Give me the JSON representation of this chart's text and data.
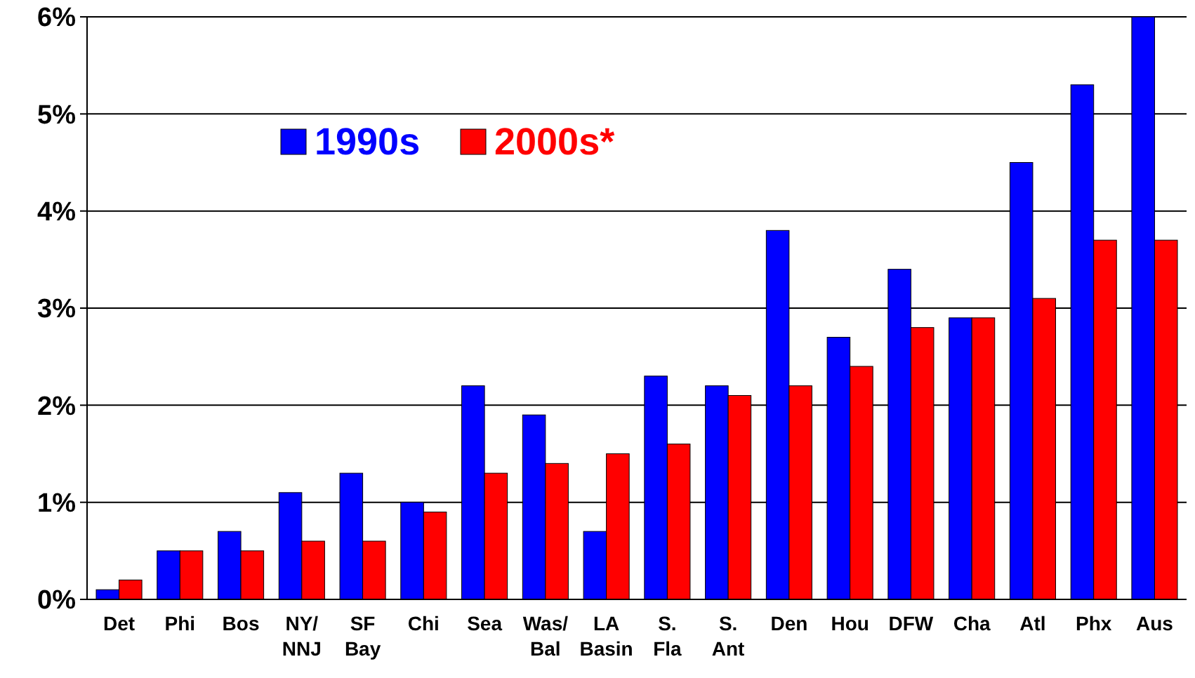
{
  "chart_data": {
    "type": "bar",
    "categories": [
      "Det",
      "Phi",
      "Bos",
      "NY/\nNNJ",
      "SF\nBay",
      "Chi",
      "Sea",
      "Was/\nBal",
      "LA\nBasin",
      "S.\nFla",
      "S.\nAnt",
      "Den",
      "Hou",
      "DFW",
      "Cha",
      "Atl",
      "Phx",
      "Aus"
    ],
    "series": [
      {
        "name": "1990s",
        "color": "#0000ff",
        "values": [
          0.1,
          0.5,
          0.7,
          1.1,
          1.3,
          1.0,
          2.2,
          1.9,
          0.7,
          2.3,
          2.2,
          3.8,
          2.7,
          3.4,
          2.9,
          4.5,
          5.3,
          6.0
        ]
      },
      {
        "name": "2000s*",
        "color": "#ff0000",
        "values": [
          0.2,
          0.5,
          0.5,
          0.6,
          0.6,
          0.9,
          1.3,
          1.4,
          1.5,
          1.6,
          2.1,
          2.2,
          2.4,
          2.8,
          2.9,
          3.1,
          3.7,
          3.7
        ]
      }
    ],
    "ylim": [
      0,
      6
    ],
    "yticks": [
      {
        "value": 0,
        "label": "0%"
      },
      {
        "value": 1,
        "label": "1%"
      },
      {
        "value": 2,
        "label": "2%"
      },
      {
        "value": 3,
        "label": "3%"
      },
      {
        "value": 4,
        "label": "4%"
      },
      {
        "value": 5,
        "label": "5%"
      },
      {
        "value": 6,
        "label": "6%"
      }
    ],
    "grid": "y",
    "legend": "top left"
  }
}
